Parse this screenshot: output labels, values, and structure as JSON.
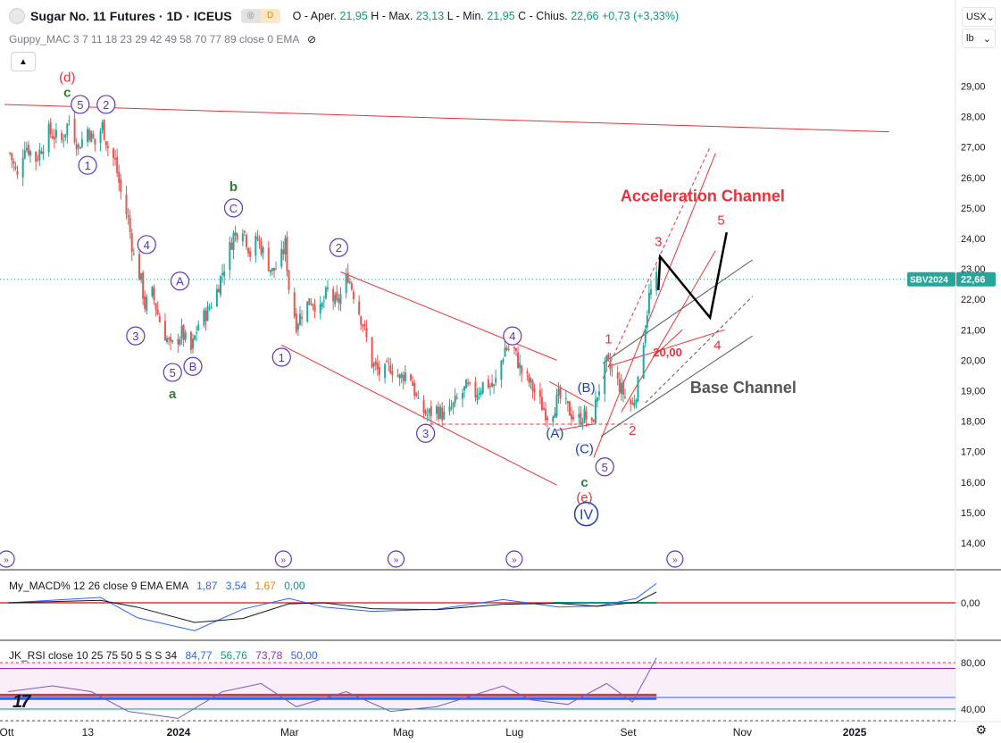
{
  "header": {
    "symbol": "Sugar No. 11 Futures · 1D · ICEUS",
    "badge1": "◎",
    "badge2": "D",
    "ohlc_prefix": "O - Aper.",
    "open": "21,95",
    "high_label": "H - Max.",
    "high": "23,13",
    "low_label": "L - Min.",
    "low": "21,95",
    "close_label": "C - Chius.",
    "close": "22,66",
    "change": "+0,73 (+3,33%)",
    "indicator1": "Guppy_MAC 3 7 11 18 23 29 42 49 58 70 77 89 close 0 EMA",
    "currency": "USX",
    "unit": "lb"
  },
  "macd": {
    "label": "My_MACD% 12 26 close 9 EMA EMA",
    "v1": "1,87",
    "v2": "3,54",
    "v3": "1,67",
    "v4": "0,00",
    "c1": "#2962ff",
    "c2": "#2962ff",
    "c3": "#f57c00",
    "c4": "#089981"
  },
  "rsi": {
    "label": "JK_RSI close 10 25 75 50 5 S S 34",
    "v1": "84,77",
    "v2": "56,76",
    "v3": "73,78",
    "v4": "50,00",
    "c1": "#2962ff",
    "c2": "#089981",
    "c3": "#9c27b0",
    "c4": "#2962ff"
  },
  "chart_data": {
    "type": "candlestick",
    "title": "Sugar No. 11 Futures · 1D · ICEUS",
    "ylim": [
      13.5,
      30.0
    ],
    "y_ticks": [
      "14,00",
      "15,00",
      "16,00",
      "17,00",
      "18,00",
      "19,00",
      "20,00",
      "21,00",
      "22,00",
      "23,00",
      "24,00",
      "25,00",
      "26,00",
      "27,00",
      "28,00",
      "29,00"
    ],
    "x_ticks": [
      "Ott",
      "13",
      "2024",
      "Mar",
      "Mag",
      "Lug",
      "Set",
      "Nov",
      "2025"
    ],
    "last_price_label": "SBV2024",
    "last_price": "22,66",
    "price_path": [
      [
        "2023-10-02",
        26.8
      ],
      [
        "2023-10-06",
        26.0
      ],
      [
        "2023-10-10",
        27.1
      ],
      [
        "2023-10-16",
        26.6
      ],
      [
        "2023-10-23",
        27.5
      ],
      [
        "2023-10-30",
        27.2
      ],
      [
        "2023-11-03",
        27.9
      ],
      [
        "2023-11-08",
        27.0
      ],
      [
        "2023-11-13",
        27.6
      ],
      [
        "2023-11-17",
        27.1
      ],
      [
        "2023-11-21",
        27.7
      ],
      [
        "2023-11-24",
        27.0
      ],
      [
        "2023-11-28",
        26.5
      ],
      [
        "2023-12-01",
        25.5
      ],
      [
        "2023-12-05",
        24.6
      ],
      [
        "2023-12-08",
        23.4
      ],
      [
        "2023-12-12",
        22.6
      ],
      [
        "2023-12-14",
        21.8
      ],
      [
        "2023-12-18",
        22.2
      ],
      [
        "2023-12-22",
        21.3
      ],
      [
        "2023-12-28",
        20.4
      ],
      [
        "2024-01-03",
        20.9
      ],
      [
        "2024-01-08",
        20.3
      ],
      [
        "2024-01-12",
        21.2
      ],
      [
        "2024-01-17",
        21.6
      ],
      [
        "2024-01-22",
        22.3
      ],
      [
        "2024-01-26",
        23.1
      ],
      [
        "2024-01-31",
        24.1
      ],
      [
        "2024-02-05",
        24.4
      ],
      [
        "2024-02-09",
        23.5
      ],
      [
        "2024-02-13",
        24.0
      ],
      [
        "2024-02-17",
        23.4
      ],
      [
        "2024-02-21",
        22.9
      ],
      [
        "2024-02-25",
        23.2
      ],
      [
        "2024-02-28",
        23.8
      ],
      [
        "2024-03-01",
        22.4
      ],
      [
        "2024-03-05",
        21.2
      ],
      [
        "2024-03-09",
        21.7
      ],
      [
        "2024-03-13",
        22.0
      ],
      [
        "2024-03-18",
        21.6
      ],
      [
        "2024-03-22",
        22.3
      ],
      [
        "2024-03-27",
        21.8
      ],
      [
        "2024-04-02",
        22.8
      ],
      [
        "2024-04-05",
        22.2
      ],
      [
        "2024-04-10",
        21.2
      ],
      [
        "2024-04-15",
        19.9
      ],
      [
        "2024-04-20",
        19.5
      ],
      [
        "2024-04-25",
        19.8
      ],
      [
        "2024-04-30",
        19.4
      ],
      [
        "2024-05-05",
        19.7
      ],
      [
        "2024-05-10",
        18.5
      ],
      [
        "2024-05-15",
        18.2
      ],
      [
        "2024-05-20",
        18.4
      ],
      [
        "2024-05-25",
        18.1
      ],
      [
        "2024-05-30",
        18.6
      ],
      [
        "2024-06-05",
        19.1
      ],
      [
        "2024-06-10",
        18.9
      ],
      [
        "2024-06-15",
        19.3
      ],
      [
        "2024-06-20",
        19.1
      ],
      [
        "2024-06-26",
        20.4
      ],
      [
        "2024-07-01",
        20.3
      ],
      [
        "2024-07-05",
        19.6
      ],
      [
        "2024-07-10",
        19.2
      ],
      [
        "2024-07-15",
        18.6
      ],
      [
        "2024-07-20",
        18.1
      ],
      [
        "2024-07-25",
        18.8
      ],
      [
        "2024-07-30",
        18.4
      ],
      [
        "2024-08-04",
        18.0
      ],
      [
        "2024-08-08",
        18.2
      ],
      [
        "2024-08-12",
        17.8
      ],
      [
        "2024-08-15",
        18.9
      ],
      [
        "2024-08-20",
        19.9
      ],
      [
        "2024-08-25",
        19.4
      ],
      [
        "2024-08-30",
        18.8
      ],
      [
        "2024-09-03",
        18.5
      ],
      [
        "2024-09-06",
        19.2
      ],
      [
        "2024-09-09",
        20.7
      ],
      [
        "2024-09-12",
        22.1
      ],
      [
        "2024-09-16",
        22.66
      ]
    ],
    "annotations": {
      "purple_circled": [
        {
          "t": "5",
          "d": "2023-11-09",
          "v": 28.4
        },
        {
          "t": "2",
          "d": "2023-11-23",
          "v": 28.4
        },
        {
          "t": "1",
          "d": "2023-11-13",
          "v": 26.4
        },
        {
          "t": "4",
          "d": "2023-12-15",
          "v": 23.8
        },
        {
          "t": "A",
          "d": "2024-01-02",
          "v": 22.6
        },
        {
          "t": "3",
          "d": "2023-12-09",
          "v": 20.8
        },
        {
          "t": "5",
          "d": "2023-12-29",
          "v": 19.6
        },
        {
          "t": "B",
          "d": "2024-01-09",
          "v": 19.8
        },
        {
          "t": "C",
          "d": "2024-01-31",
          "v": 25.0
        },
        {
          "t": "1",
          "d": "2024-02-26",
          "v": 20.1
        },
        {
          "t": "2",
          "d": "2024-03-28",
          "v": 23.7
        },
        {
          "t": "3",
          "d": "2024-05-14",
          "v": 17.6
        },
        {
          "t": "4",
          "d": "2024-06-30",
          "v": 20.8
        },
        {
          "t": "5",
          "d": "2024-08-19",
          "v": 16.5
        }
      ],
      "blue_labels": [
        {
          "t": "(A)",
          "d": "2024-07-23",
          "v": 17.6
        },
        {
          "t": "(B)",
          "d": "2024-08-09",
          "v": 19.1
        },
        {
          "t": "(C)",
          "d": "2024-08-08",
          "v": 17.1
        }
      ],
      "blue_circled": [
        {
          "t": "IV",
          "d": "2024-08-09",
          "v": 14.95
        }
      ],
      "red_labels": [
        {
          "t": "(d)",
          "d": "2023-11-02",
          "v": 29.3
        },
        {
          "t": "(e)",
          "d": "2024-08-08",
          "v": 15.5
        },
        {
          "t": "1",
          "d": "2024-08-21",
          "v": 20.7
        },
        {
          "t": "2",
          "d": "2024-09-03",
          "v": 17.7
        },
        {
          "t": "3",
          "d": "2024-09-17",
          "v": 23.9
        },
        {
          "t": "4",
          "d": "2024-10-19",
          "v": 20.5
        },
        {
          "t": "5",
          "d": "2024-10-21",
          "v": 24.6
        }
      ],
      "green_labels": [
        {
          "t": "c",
          "d": "2023-11-02",
          "v": 28.8
        },
        {
          "t": "a",
          "d": "2023-12-29",
          "v": 18.9
        },
        {
          "t": "b",
          "d": "2024-01-31",
          "v": 25.7
        },
        {
          "t": "c",
          "d": "2024-08-08",
          "v": 16.0
        }
      ],
      "text_labels": [
        {
          "t": "Acceleration Channel",
          "d": "2024-10-11",
          "v": 25.4,
          "color": "#e5323b"
        },
        {
          "t": "Base Channel",
          "d": "2024-11-02",
          "v": 19.1,
          "color": "#555"
        },
        {
          "t": "20,00",
          "d": "2024-09-22",
          "v": 20.3,
          "color": "#e5323b"
        }
      ]
    }
  }
}
